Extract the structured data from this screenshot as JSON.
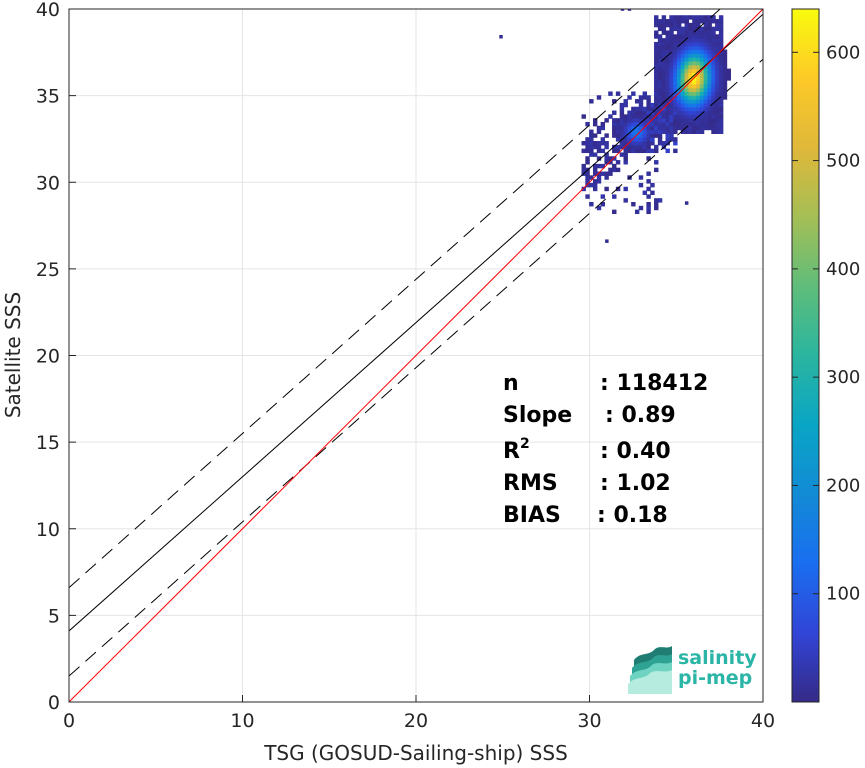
{
  "chart_data": {
    "type": "heatmap",
    "xlabel": "TSG (GOSUD-Sailing-ship) SSS",
    "ylabel": "Satellite SSS",
    "xlim": [
      0,
      40
    ],
    "ylim": [
      0,
      40
    ],
    "xticks": [
      "0",
      "10",
      "20",
      "30",
      "40"
    ],
    "yticks": [
      "0",
      "5",
      "10",
      "15",
      "20",
      "25",
      "30",
      "35",
      "40"
    ],
    "grid": true,
    "colorbar": {
      "range": [
        0,
        640
      ],
      "ticks": [
        "100",
        "200",
        "300",
        "400",
        "500",
        "600"
      ],
      "tick_values": [
        100,
        200,
        300,
        400,
        500,
        600
      ],
      "colormap": "parula"
    },
    "lines": {
      "identity": {
        "slope": 1.0,
        "intercept": 0.0,
        "color": "#ff0000"
      },
      "fit": {
        "slope": 0.89,
        "intercept": 4.1,
        "color": "#000000"
      },
      "fit_plus_2rms": {
        "slope": 0.89,
        "intercept": 6.6,
        "style": "dashed"
      },
      "fit_minus_2rms": {
        "slope": 0.89,
        "intercept": 1.5,
        "style": "dashed"
      }
    },
    "density_clusters": [
      {
        "x_range": [
          34.0,
          37.6
        ],
        "y_range": [
          32.5,
          39.5
        ],
        "peak": 640
      },
      {
        "x_range": [
          29.5,
          34.0
        ],
        "y_range": [
          28.0,
          35.0
        ],
        "peak": 60
      },
      {
        "x_range": [
          31.5,
          33.0
        ],
        "y_range": [
          32.0,
          33.5
        ],
        "peak": 180
      }
    ],
    "outliers": [
      {
        "x": 24.8,
        "y": 38.3
      },
      {
        "x": 31.8,
        "y": 39.9
      },
      {
        "x": 32.2,
        "y": 39.9
      },
      {
        "x": 35.5,
        "y": 28.7
      },
      {
        "x": 30.9,
        "y": 26.5
      }
    ],
    "stats": [
      {
        "label": "n",
        "value": ": 118412"
      },
      {
        "label": "Slope",
        "value": ": 0.89"
      },
      {
        "label": "R",
        "sup": "2",
        "value": ": 0.40"
      },
      {
        "label": "RMS",
        "value": ": 1.02"
      },
      {
        "label": "BIAS",
        "value": ": 0.18"
      }
    ]
  },
  "logo": {
    "line1": "salinity",
    "line2": "pi-mep",
    "color": "#2bb5a6"
  }
}
